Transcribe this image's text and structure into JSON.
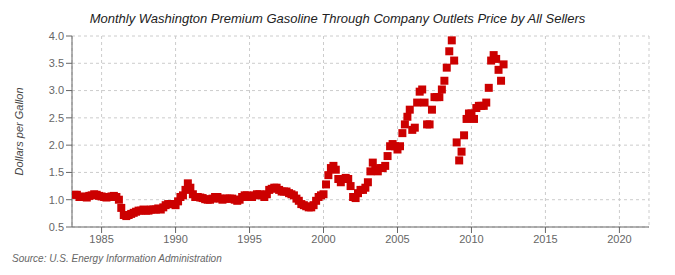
{
  "chart_data": {
    "type": "scatter",
    "title": "Monthly Washington Premium Gasoline Through Company Outlets Price by All Sellers",
    "ylabel": "Dollars per Gallon",
    "source": "Source: U.S. Energy Information Administration",
    "xlim": [
      1983,
      2022
    ],
    "ylim": [
      0.5,
      4.0
    ],
    "xticks": [
      1985,
      1990,
      1995,
      2000,
      2005,
      2010,
      2015,
      2020
    ],
    "yticks": [
      0.5,
      {
        "value": 1.0,
        "label": "1.0"
      },
      1.5,
      {
        "value": 2.0,
        "label": "2.0"
      },
      2.5,
      {
        "value": 3.0,
        "label": "3.0"
      },
      3.5,
      {
        "value": 4.0,
        "label": "4.0"
      }
    ],
    "grid": true,
    "color": "#cc0000",
    "marker": "square",
    "x": [
      1983.17,
      1983.33,
      1983.5,
      1983.67,
      1983.83,
      1984.0,
      1984.17,
      1984.33,
      1984.5,
      1984.67,
      1984.83,
      1985.0,
      1985.17,
      1985.33,
      1985.5,
      1985.67,
      1985.83,
      1986.0,
      1986.17,
      1986.33,
      1986.5,
      1986.67,
      1986.83,
      1987.0,
      1987.17,
      1987.33,
      1987.5,
      1987.67,
      1987.83,
      1988.0,
      1988.17,
      1988.33,
      1988.5,
      1988.67,
      1988.83,
      1989.0,
      1989.17,
      1989.33,
      1989.5,
      1989.67,
      1989.83,
      1990.0,
      1990.17,
      1990.33,
      1990.5,
      1990.67,
      1990.83,
      1991.0,
      1991.17,
      1991.33,
      1991.5,
      1991.67,
      1991.83,
      1992.0,
      1992.17,
      1992.33,
      1992.5,
      1992.67,
      1992.83,
      1993.0,
      1993.17,
      1993.33,
      1993.5,
      1993.67,
      1993.83,
      1994.0,
      1994.17,
      1994.33,
      1994.5,
      1994.67,
      1994.83,
      1995.0,
      1995.17,
      1995.33,
      1995.5,
      1995.67,
      1995.83,
      1996.0,
      1996.17,
      1996.33,
      1996.5,
      1996.67,
      1996.83,
      1997.0,
      1997.17,
      1997.33,
      1997.5,
      1997.67,
      1997.83,
      1998.0,
      1998.17,
      1998.33,
      1998.5,
      1998.67,
      1998.83,
      1999.0,
      1999.17,
      1999.33,
      1999.5,
      1999.67,
      1999.83,
      2000.0,
      2000.17,
      2000.33,
      2000.5,
      2000.67,
      2000.83,
      2001.0,
      2001.17,
      2001.33,
      2001.5,
      2001.67,
      2001.83,
      2002.0,
      2002.17,
      2002.33,
      2002.5,
      2002.67,
      2002.83,
      2003.0,
      2003.17,
      2003.33,
      2003.5,
      2003.67,
      2003.83,
      2004.0,
      2004.17,
      2004.33,
      2004.5,
      2004.67,
      2004.83,
      2005.0,
      2005.17,
      2005.33,
      2005.5,
      2005.67,
      2005.83,
      2006.0,
      2006.17,
      2006.33,
      2006.5,
      2006.67,
      2006.83,
      2007.0,
      2007.17,
      2007.33,
      2007.5,
      2007.67,
      2007.83,
      2008.0,
      2008.17,
      2008.33,
      2008.5,
      2008.67,
      2008.83,
      2009.0,
      2009.17,
      2009.33,
      2009.5,
      2009.67,
      2009.83,
      2010.0,
      2010.17,
      2010.33,
      2010.5,
      2010.67,
      2010.83,
      2011.0,
      2011.17,
      2011.33,
      2011.5,
      2011.67,
      2011.83,
      2012.0,
      2012.17
    ],
    "values": [
      1.09,
      1.09,
      1.05,
      1.06,
      1.05,
      1.04,
      1.07,
      1.08,
      1.1,
      1.09,
      1.07,
      1.06,
      1.05,
      1.04,
      1.05,
      1.06,
      1.07,
      1.05,
      1.0,
      0.85,
      0.72,
      0.7,
      0.72,
      0.74,
      0.76,
      0.78,
      0.8,
      0.8,
      0.82,
      0.8,
      0.8,
      0.82,
      0.82,
      0.82,
      0.84,
      0.82,
      0.86,
      0.9,
      0.92,
      0.92,
      0.92,
      0.9,
      0.97,
      1.05,
      1.08,
      1.18,
      1.3,
      1.22,
      1.1,
      1.05,
      1.05,
      1.04,
      1.03,
      1.01,
      1.0,
      1.0,
      1.02,
      1.05,
      1.05,
      1.02,
      1.0,
      1.02,
      1.02,
      1.02,
      1.02,
      1.0,
      0.98,
      1.0,
      1.05,
      1.08,
      1.08,
      1.05,
      1.05,
      1.08,
      1.1,
      1.1,
      1.08,
      1.05,
      1.1,
      1.18,
      1.2,
      1.22,
      1.22,
      1.18,
      1.15,
      1.15,
      1.15,
      1.12,
      1.1,
      1.08,
      1.02,
      0.98,
      0.92,
      0.9,
      0.88,
      0.86,
      0.86,
      0.9,
      0.98,
      1.05,
      1.08,
      1.1,
      1.28,
      1.45,
      1.58,
      1.62,
      1.55,
      1.38,
      1.32,
      1.38,
      1.4,
      1.38,
      1.25,
      1.05,
      1.03,
      1.12,
      1.18,
      1.18,
      1.22,
      1.32,
      1.52,
      1.68,
      1.55,
      1.52,
      1.58,
      1.58,
      1.62,
      1.8,
      1.98,
      2.02,
      1.98,
      1.92,
      1.98,
      2.22,
      2.38,
      2.52,
      2.65,
      2.28,
      2.32,
      2.78,
      2.98,
      3.02,
      2.78,
      2.38,
      2.38,
      2.65,
      2.88,
      2.88,
      2.88,
      3.02,
      3.18,
      3.42,
      3.72,
      3.92,
      3.55,
      2.05,
      1.72,
      1.88,
      2.18,
      2.48,
      2.58,
      2.58,
      2.48,
      2.68,
      2.72,
      2.72,
      2.72,
      2.78,
      3.05,
      3.55,
      3.65,
      3.58,
      3.38,
      3.18,
      3.48
    ]
  }
}
